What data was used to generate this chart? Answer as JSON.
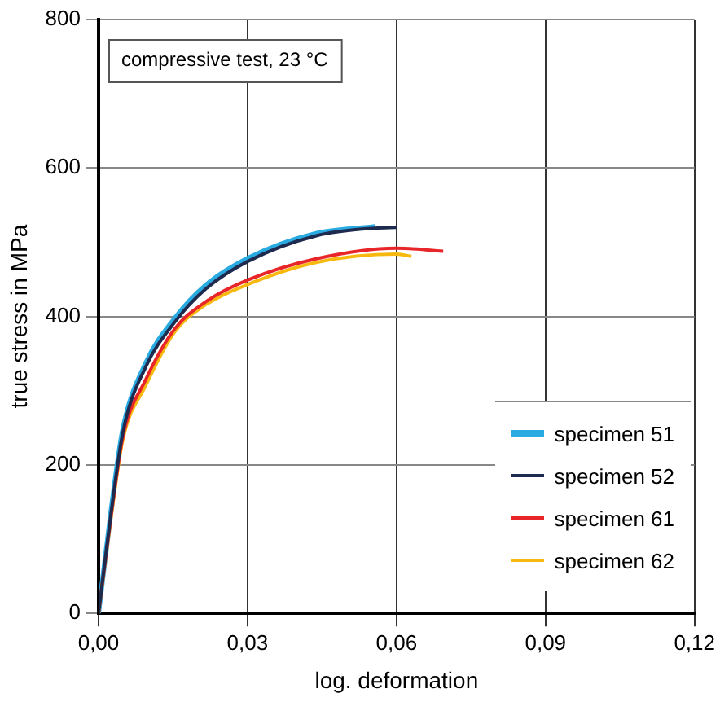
{
  "chart_data": {
    "type": "line",
    "xlabel": "log. deformation",
    "ylabel": "true stress in MPa",
    "annotations": [
      "compressive test, 23 °C"
    ],
    "xlim": [
      0,
      0.12
    ],
    "xticks": [
      {
        "value": 0,
        "label": "0,00"
      },
      {
        "value": 0.03,
        "label": "0,03"
      },
      {
        "value": 0.06,
        "label": "0,06"
      },
      {
        "value": 0.09,
        "label": "0,09"
      },
      {
        "value": 0.12,
        "label": "0,12"
      }
    ],
    "ylim": [
      0,
      800
    ],
    "yticks": [
      0,
      200,
      400,
      600,
      800
    ],
    "grid": true,
    "legend": "bottom right",
    "marker": "none",
    "line_style": "solid",
    "series": [
      {
        "name": "specimen 51",
        "color": "#29abe2",
        "x": [
          0,
          0.0025,
          0.0049,
          0.0095,
          0.0153,
          0.0214,
          0.03,
          0.044,
          0.0557
        ],
        "values": [
          0,
          137,
          248,
          337,
          397,
          441,
          478,
          512,
          521
        ]
      },
      {
        "name": "specimen 52",
        "color": "#1f2a4f",
        "x": [
          0,
          0.0025,
          0.0049,
          0.0095,
          0.0153,
          0.0214,
          0.03,
          0.044,
          0.0557,
          0.06
        ],
        "values": [
          0,
          134,
          244,
          332,
          392,
          436,
          474,
          509,
          519,
          520
        ]
      },
      {
        "name": "specimen 61",
        "color": "#e8262a",
        "x": [
          0,
          0.0025,
          0.0049,
          0.0095,
          0.0153,
          0.0214,
          0.03,
          0.044,
          0.06,
          0.0694
        ],
        "values": [
          0,
          130,
          238,
          315,
          383,
          419,
          449,
          478,
          492,
          488
        ]
      },
      {
        "name": "specimen 62",
        "color": "#f7b90f",
        "x": [
          0,
          0.0025,
          0.0049,
          0.0095,
          0.0153,
          0.0214,
          0.03,
          0.044,
          0.06,
          0.063
        ],
        "values": [
          0,
          128,
          234,
          307,
          379,
          415,
          443,
          473,
          484,
          481
        ]
      }
    ]
  }
}
